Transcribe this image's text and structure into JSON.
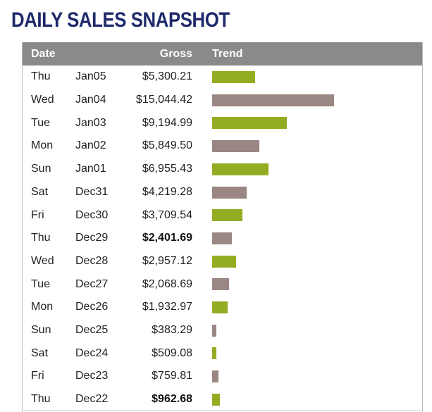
{
  "title": "DAILY SALES SNAPSHOT",
  "columns": {
    "date": "Date",
    "gross": "Gross",
    "trend": "Trend"
  },
  "colors": {
    "green": "#93ad23",
    "brown": "#9a8682",
    "header": "#8a8a8a",
    "title": "#1f2a6b"
  },
  "chart_data": {
    "type": "bar",
    "orientation": "horizontal",
    "rows": [
      {
        "day": "Thu",
        "date": "Jan05",
        "gross": "$5,300.21",
        "value": 5300.21,
        "color": "green",
        "bold": false
      },
      {
        "day": "Wed",
        "date": "Jan04",
        "gross": "$15,044.42",
        "value": 15044.42,
        "color": "brown",
        "bold": false
      },
      {
        "day": "Tue",
        "date": "Jan03",
        "gross": "$9,194.99",
        "value": 9194.99,
        "color": "green",
        "bold": false
      },
      {
        "day": "Mon",
        "date": "Jan02",
        "gross": "$5,849.50",
        "value": 5849.5,
        "color": "brown",
        "bold": false
      },
      {
        "day": "Sun",
        "date": "Jan01",
        "gross": "$6,955.43",
        "value": 6955.43,
        "color": "green",
        "bold": false
      },
      {
        "day": "Sat",
        "date": "Dec31",
        "gross": "$4,219.28",
        "value": 4219.28,
        "color": "brown",
        "bold": false
      },
      {
        "day": "Fri",
        "date": "Dec30",
        "gross": "$3,709.54",
        "value": 3709.54,
        "color": "green",
        "bold": false
      },
      {
        "day": "Thu",
        "date": "Dec29",
        "gross": "$2,401.69",
        "value": 2401.69,
        "color": "brown",
        "bold": true
      },
      {
        "day": "Wed",
        "date": "Dec28",
        "gross": "$2,957.12",
        "value": 2957.12,
        "color": "green",
        "bold": false
      },
      {
        "day": "Tue",
        "date": "Dec27",
        "gross": "$2,068.69",
        "value": 2068.69,
        "color": "brown",
        "bold": false
      },
      {
        "day": "Mon",
        "date": "Dec26",
        "gross": "$1,932.97",
        "value": 1932.97,
        "color": "green",
        "bold": false
      },
      {
        "day": "Sun",
        "date": "Dec25",
        "gross": "$383.29",
        "value": 383.29,
        "color": "brown",
        "bold": false
      },
      {
        "day": "Sat",
        "date": "Dec24",
        "gross": "$509.08",
        "value": 509.08,
        "color": "green",
        "bold": false
      },
      {
        "day": "Fri",
        "date": "Dec23",
        "gross": "$759.81",
        "value": 759.81,
        "color": "brown",
        "bold": false
      },
      {
        "day": "Thu",
        "date": "Dec22",
        "gross": "$962.68",
        "value": 962.68,
        "color": "green",
        "bold": true
      }
    ]
  }
}
